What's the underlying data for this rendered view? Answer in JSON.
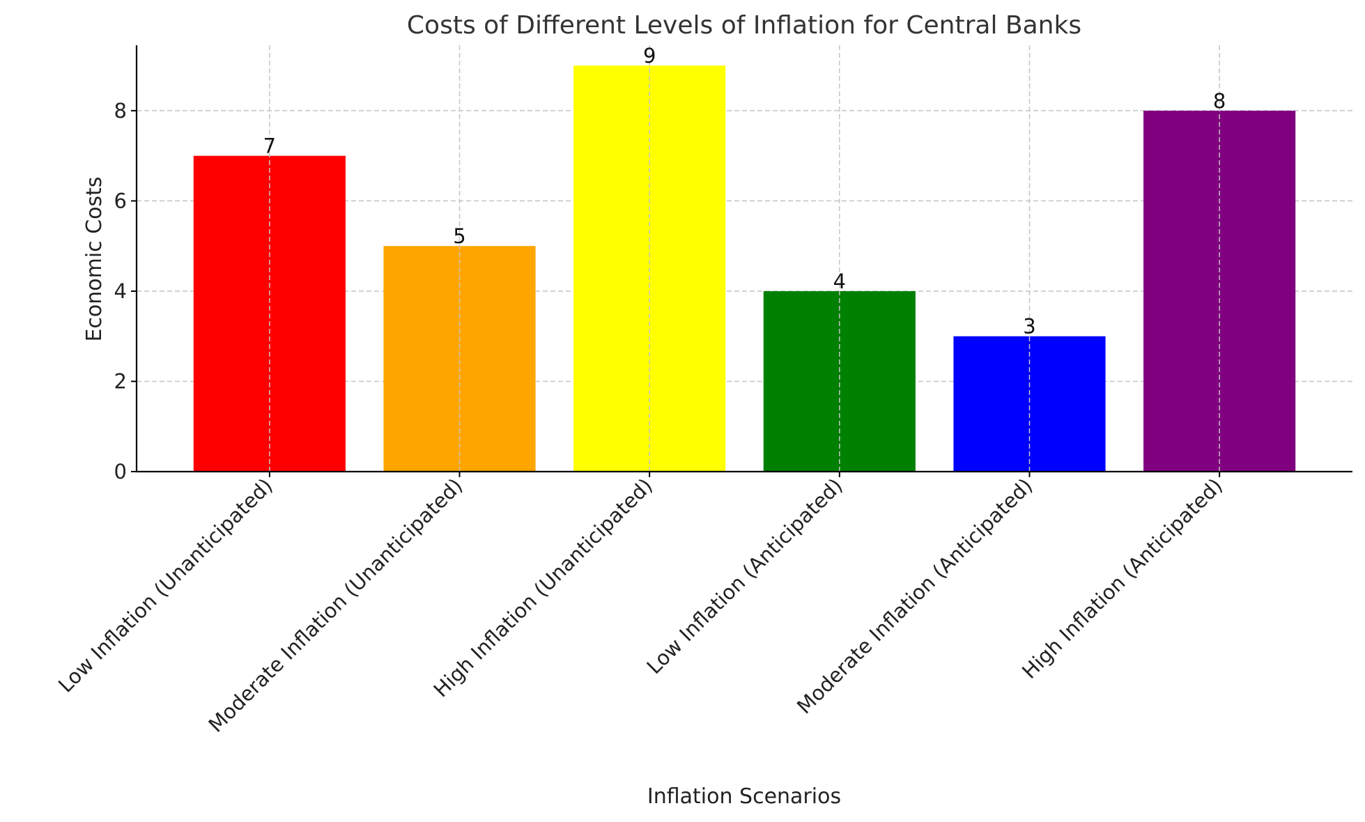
{
  "chart_data": {
    "type": "bar",
    "title": "Costs of Different Levels of Inflation for Central Banks",
    "xlabel": "Inflation Scenarios",
    "ylabel": "Economic Costs",
    "categories": [
      "Low Inflation (Unanticipated)",
      "Moderate Inflation (Unanticipated)",
      "High Inflation (Unanticipated)",
      "Low Inflation (Anticipated)",
      "Moderate Inflation (Anticipated)",
      "High Inflation (Anticipated)"
    ],
    "values": [
      7,
      5,
      9,
      4,
      3,
      8
    ],
    "data_labels": [
      "7",
      "5",
      "9",
      "4",
      "3",
      "8"
    ],
    "colors": [
      "#ff0000",
      "#ffa500",
      "#ffff00",
      "#008000",
      "#0000ff",
      "#800080"
    ],
    "ylim": [
      0,
      9.45
    ],
    "yticks": [
      0,
      2,
      4,
      6,
      8
    ],
    "ytick_labels": [
      "0",
      "2",
      "4",
      "6",
      "8"
    ],
    "grid": true,
    "x_tick_rotation_deg": 45
  }
}
